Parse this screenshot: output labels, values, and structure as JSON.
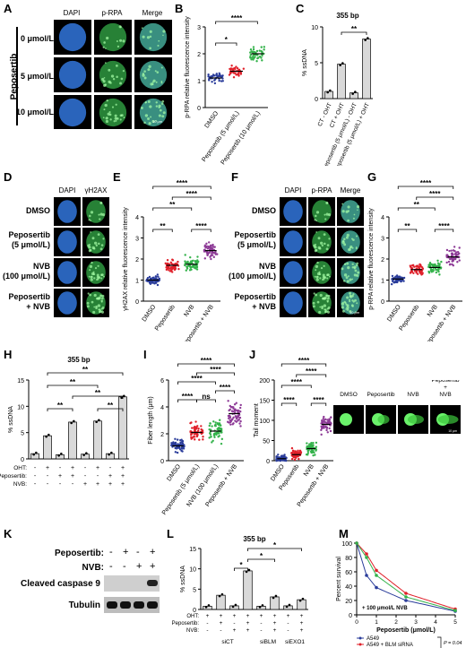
{
  "panels": {
    "A": {
      "letter": "A",
      "columns": [
        "DAPI",
        "p-RPA",
        "Merge"
      ],
      "rows": [
        "0 μmol/L",
        "5 μmol/L",
        "10 μmol/L"
      ],
      "side_label": "Peposertib",
      "scale": "10 μm"
    },
    "B": {
      "letter": "B",
      "ylabel": "p-RPA relative fluorescence intensity",
      "yticks": [
        "0",
        "1",
        "2",
        "3"
      ],
      "categories": [
        "DMSO",
        "Peposertib (5 μmol/L)",
        "Peposertib (10 μmol/L)"
      ],
      "sig": [
        "*",
        "****"
      ],
      "colors": [
        "#2b3d9b",
        "#e0202a",
        "#33b24a"
      ]
    },
    "C": {
      "letter": "C",
      "title": "355 bp",
      "ylabel": "% ssDNA",
      "yticks": [
        "0",
        "5",
        "10"
      ],
      "categories": [
        "CT - OHT",
        "CT + OHT",
        "Peposertib (5 μmol/L) - OHT",
        "Peposertib (5 μmol/L) + OHT"
      ],
      "sig": [
        "**"
      ]
    },
    "D": {
      "letter": "D",
      "columns": [
        "DAPI",
        "γH2AX"
      ],
      "rows": [
        "DMSO",
        "Peposertib",
        "(5 μmol/L)",
        "NVB",
        "(100 μmol/L)",
        "Peposertib",
        "+ NVB"
      ]
    },
    "E": {
      "letter": "E",
      "ylabel": "γH2AX relative fluorescence intensity",
      "yticks": [
        "0",
        "1",
        "2",
        "3",
        "4"
      ],
      "categories": [
        "DMSO",
        "Peposertib",
        "NVB",
        "Peposertib + NVB"
      ],
      "sig": [
        "****",
        "****",
        "**",
        "**",
        "****"
      ]
    },
    "F": {
      "letter": "F",
      "columns": [
        "DAPI",
        "p-RPA",
        "Merge"
      ],
      "rows": [
        "DMSO",
        "Peposertib",
        "(5 μmol/L)",
        "NVB",
        "(100 μmol/L)",
        "Peposertib",
        "+ NVB"
      ],
      "scale": "10 μm"
    },
    "G": {
      "letter": "G",
      "ylabel": "p-RPA relative fluorescence intensity",
      "yticks": [
        "0",
        "1",
        "2",
        "3",
        "4"
      ],
      "categories": [
        "DMSO",
        "Peposertib",
        "NVB",
        "Peposertib + NVB"
      ],
      "sig": [
        "****",
        "****",
        "**",
        "**",
        "****"
      ]
    },
    "H": {
      "letter": "H",
      "title": "355 bp",
      "ylabel": "% ssDNA",
      "yticks": [
        "0",
        "5",
        "10",
        "15"
      ],
      "row_labels": [
        "OHT:",
        "Peposertib:",
        "NVB:"
      ],
      "sig": [
        "**",
        "**",
        "**",
        "**",
        "**"
      ]
    },
    "I": {
      "letter": "I",
      "ylabel": "Fiber length (μm)",
      "yticks": [
        "0",
        "2",
        "4",
        "6"
      ],
      "categories": [
        "DMSO",
        "Peposertib (5 μmol/L)",
        "NVB (100 μmol/L)",
        "Peposertib + NVB"
      ],
      "sig": [
        "****",
        "****",
        "****",
        "****",
        "****",
        "ns"
      ]
    },
    "J": {
      "letter": "J",
      "ylabel": "Tail moment",
      "yticks": [
        "0",
        "50",
        "100",
        "150",
        "200"
      ],
      "categories": [
        "DMSO",
        "Peposertib",
        "NVB",
        "Peposertib + NVB"
      ],
      "sig": [
        "****",
        "****",
        "****",
        "****",
        "****"
      ],
      "comet_labels": [
        "DMSO",
        "Peposertib",
        "NVB",
        "Peposertib",
        "+",
        "NVB"
      ],
      "scale": "10 μm"
    },
    "K": {
      "letter": "K",
      "row_labels": [
        "Peposertib:",
        "NVB:"
      ],
      "signs": [
        "-",
        "+",
        "-",
        "+",
        "-",
        "-",
        "+",
        "+"
      ],
      "bands": [
        "Cleaved caspase 9",
        "Tubulin"
      ]
    },
    "L": {
      "letter": "L",
      "title": "355 bp",
      "ylabel": "% ssDNA",
      "yticks": [
        "0",
        "5",
        "10",
        "15"
      ],
      "row_labels": [
        "OHT:",
        "Peposertib:",
        "NVB:"
      ],
      "groups": [
        "siCT",
        "siBLM",
        "siEXO1"
      ],
      "sig": [
        "*",
        "*",
        "*"
      ]
    },
    "M": {
      "letter": "M",
      "ylabel": "Percent survival",
      "xlabel": "Peposertib (μmol/L)",
      "yticks": [
        "0",
        "20",
        "40",
        "60",
        "80",
        "100"
      ],
      "xticks": [
        "0",
        "1",
        "2",
        "3",
        "4",
        "5"
      ],
      "annotation": "+ 100 μmol/L NVB",
      "legend": [
        "A549",
        "A549 + BLM siRNA",
        "A549 + EXO1 siRNA"
      ],
      "pvalues": [
        "P = 0.04",
        "P = 0.04"
      ],
      "colors": [
        "#2b3d9b",
        "#e0202a",
        "#33b24a"
      ]
    }
  },
  "chart_data": [
    {
      "panel": "B",
      "type": "scatter",
      "categories": [
        "DMSO",
        "Peposertib (5 μmol/L)",
        "Peposertib (10 μmol/L)"
      ],
      "series": [
        {
          "values": [
            1.1,
            1.35,
            2.0
          ]
        }
      ],
      "ylim": [
        0,
        3
      ]
    },
    {
      "panel": "C",
      "type": "bar",
      "categories": [
        "CT - OHT",
        "CT + OHT",
        "Peposertib (5 μmol/L) - OHT",
        "Peposertib (5 μmol/L) + OHT"
      ],
      "values": [
        1.0,
        4.8,
        0.8,
        8.3
      ],
      "ylim": [
        0,
        10
      ]
    },
    {
      "panel": "E",
      "type": "scatter",
      "categories": [
        "DMSO",
        "Peposertib",
        "NVB",
        "Peposertib + NVB"
      ],
      "series": [
        {
          "values": [
            1.0,
            1.7,
            1.75,
            2.4
          ]
        }
      ],
      "ylim": [
        0,
        4
      ]
    },
    {
      "panel": "G",
      "type": "scatter",
      "categories": [
        "DMSO",
        "Peposertib",
        "NVB",
        "Peposertib + NVB"
      ],
      "series": [
        {
          "values": [
            1.05,
            1.5,
            1.6,
            2.1
          ]
        }
      ],
      "ylim": [
        0,
        4
      ]
    },
    {
      "panel": "H",
      "type": "bar",
      "values": [
        1.0,
        4.4,
        0.8,
        7.0,
        0.9,
        7.2,
        1.0,
        11.8
      ],
      "ylim": [
        0,
        15
      ]
    },
    {
      "panel": "I",
      "type": "scatter",
      "categories": [
        "DMSO",
        "Peposertib (5 μmol/L)",
        "NVB (100 μmol/L)",
        "Peposertib + NVB"
      ],
      "series": [
        {
          "values": [
            1.1,
            2.1,
            2.2,
            3.5
          ]
        }
      ],
      "ylim": [
        0,
        6
      ]
    },
    {
      "panel": "J",
      "type": "scatter",
      "categories": [
        "DMSO",
        "Peposertib",
        "NVB",
        "Peposertib + NVB"
      ],
      "series": [
        {
          "values": [
            5,
            15,
            30,
            90
          ]
        }
      ],
      "ylim": [
        0,
        200
      ]
    },
    {
      "panel": "L",
      "type": "bar",
      "values": [
        0.8,
        3.5,
        0.9,
        9.5,
        0.8,
        3.1,
        0.9,
        2.4
      ],
      "ylim": [
        0,
        15
      ]
    },
    {
      "panel": "M",
      "type": "line",
      "x": [
        0,
        0.5,
        1,
        2.5,
        5
      ],
      "series": [
        {
          "name": "A549",
          "values": [
            100,
            55,
            38,
            20,
            5
          ]
        },
        {
          "name": "A549 + BLM siRNA",
          "values": [
            100,
            85,
            62,
            30,
            8
          ]
        },
        {
          "name": "A549 + EXO1 siRNA",
          "values": [
            100,
            80,
            55,
            25,
            6
          ]
        }
      ],
      "xlim": [
        0,
        5
      ],
      "ylim": [
        0,
        100
      ]
    }
  ]
}
